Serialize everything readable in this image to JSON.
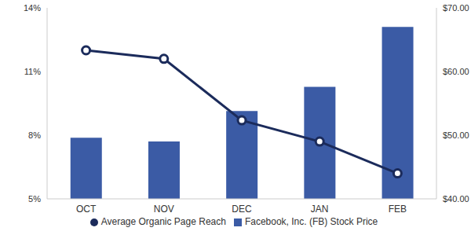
{
  "chart_data": {
    "type": "bar",
    "categories": [
      "OCT",
      "NOV",
      "DEC",
      "JAN",
      "FEB"
    ],
    "series": [
      {
        "name": "Average Organic Page Reach",
        "type": "line",
        "color": "#1b2b5b",
        "marker": "circle",
        "values": [
          12.0,
          11.6,
          8.7,
          7.7,
          6.2
        ]
      },
      {
        "name": "Facebook, Inc. (FB) Stock Price",
        "type": "bar",
        "color": "#3b5ba5",
        "axis": "y2",
        "values": [
          49.6,
          49.0,
          53.8,
          57.6,
          67.0
        ]
      }
    ],
    "ylim": [
      5,
      14
    ],
    "yticks": [
      {
        "value": 5,
        "label": "5%"
      },
      {
        "value": 8,
        "label": "8%"
      },
      {
        "value": 11,
        "label": "11%"
      },
      {
        "value": 14,
        "label": "14%"
      }
    ],
    "y2lim": [
      40,
      70
    ],
    "y2ticks": [
      {
        "value": 40,
        "label": "$40.00"
      },
      {
        "value": 50,
        "label": "$50.00"
      },
      {
        "value": 60,
        "label": "$60.00"
      },
      {
        "value": 70,
        "label": "$70.00"
      }
    ],
    "grid": false,
    "legend": "bottom"
  }
}
